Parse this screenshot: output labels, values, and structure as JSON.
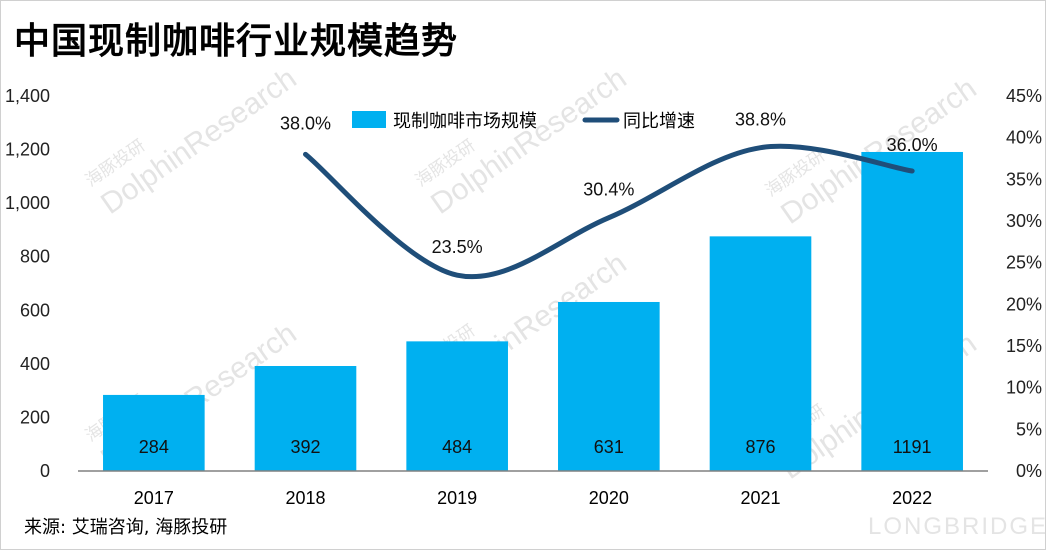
{
  "title": "中国现制咖啡行业规模趋势",
  "source": "来源: 艾瑞咨询, 海豚投研",
  "watermark": {
    "cn": "海豚投研",
    "en": "DolphinResearch",
    "brand": "LONGBRIDGE"
  },
  "colors": {
    "bar": "#00b0f0",
    "line": "#1f4e79",
    "axis": "#808080"
  },
  "chart_data": {
    "type": "bar+line",
    "title": "中国现制咖啡行业规模趋势",
    "categories": [
      "2017",
      "2018",
      "2019",
      "2020",
      "2021",
      "2022"
    ],
    "series": [
      {
        "name": "现制咖啡市场规模",
        "type": "bar",
        "axis": "left",
        "values": [
          284,
          392,
          484,
          631,
          876,
          1191
        ]
      },
      {
        "name": "同比增速",
        "type": "line",
        "axis": "right",
        "values": [
          null,
          38.0,
          23.5,
          30.4,
          38.8,
          36.0
        ],
        "labels": [
          "",
          "38.0%",
          "23.5%",
          "30.4%",
          "38.8%",
          "36.0%"
        ]
      }
    ],
    "y_left": {
      "min": 0,
      "max": 1400,
      "ticks": [
        "0",
        "200",
        "400",
        "600",
        "800",
        "1,000",
        "1,200",
        "1,400"
      ]
    },
    "y_right": {
      "min": 0,
      "max": 45,
      "ticks": [
        "0%",
        "5%",
        "10%",
        "15%",
        "20%",
        "25%",
        "30%",
        "35%",
        "40%",
        "45%"
      ]
    },
    "legend_position": "top-center",
    "grid": false
  }
}
